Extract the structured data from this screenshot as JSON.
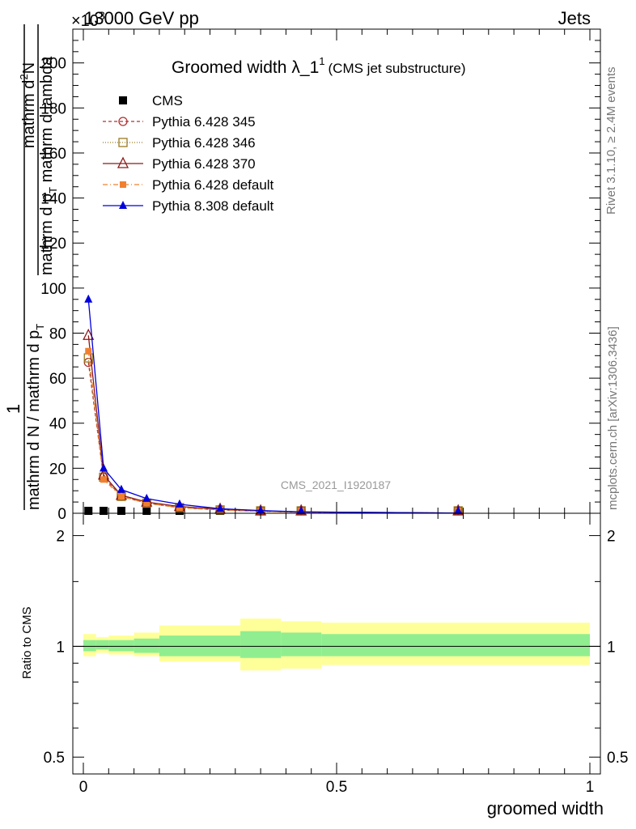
{
  "header": {
    "left": "13000 GeV pp",
    "right": "Jets",
    "exponent": "×10",
    "exponent_power": "3"
  },
  "title": {
    "main": "Groomed width",
    "lambda": "λ_1",
    "lambda_sup": "1",
    "sub": "(CMS jet substructure)"
  },
  "ylabel": {
    "numerator_1": "1",
    "frac_top": "mathrm d",
    "frac_top_sup": "2",
    "frac_top_rest": "N",
    "frac_bottom": "mathrm d p",
    "frac_bottom_sub": "T",
    "frac_bottom_rest": " mathrm d lambda",
    "denominator_1": "mathrm d N / mathrm d p",
    "denominator_1_sub": "T"
  },
  "watermark": "CMS_2021_I1920187",
  "side_right_top": "Rivet 3.1.10, ≥ 2.4M events",
  "side_right_bottom": "mcplots.cern.ch [arXiv:1306.3436]",
  "ratio_ylabel": "Ratio to CMS",
  "xlabel": "groomed width",
  "colors": {
    "cms": "#000000",
    "p345": "#b03030",
    "p346": "#9a7a20",
    "p370": "#8b1a1a",
    "pdef": "#f08030",
    "p8": "#0000dd",
    "band_inner": "#90ee90",
    "band_outer": "#ffff99"
  },
  "chart_data": [
    {
      "type": "line",
      "title": "Groomed width λ_1^1 (CMS jet substructure)",
      "ylabel": "×10^3",
      "xlim": [
        0,
        1
      ],
      "ylim": [
        0,
        215
      ],
      "yticks": [
        0,
        20,
        40,
        60,
        80,
        100,
        120,
        140,
        160,
        180,
        200
      ],
      "legend_position": "top-left",
      "x": [
        0.01,
        0.04,
        0.075,
        0.125,
        0.19,
        0.27,
        0.35,
        0.43,
        0.74
      ],
      "series": [
        {
          "name": "CMS",
          "marker": "square",
          "values": [
            0.9,
            0.8,
            0.6,
            0.5,
            0.3,
            0.2,
            0.1,
            0.1,
            0.05
          ]
        },
        {
          "name": "Pythia 6.428 345",
          "marker": "open-circle",
          "dash": "4,3",
          "values": [
            67,
            16,
            7.5,
            4.5,
            2.5,
            1.5,
            0.9,
            0.5,
            0.1
          ]
        },
        {
          "name": "Pythia 6.428 346",
          "marker": "open-square",
          "dash": "1,2",
          "values": [
            69,
            16,
            7.5,
            4.5,
            2.5,
            1.5,
            0.9,
            0.5,
            0.1
          ]
        },
        {
          "name": "Pythia 6.428 370",
          "marker": "open-triangle",
          "dash": "",
          "values": [
            79,
            17,
            8,
            5,
            3,
            1.8,
            1,
            0.6,
            0.1
          ]
        },
        {
          "name": "Pythia 6.428 default",
          "marker": "filled-square",
          "dash": "6,3,1,3",
          "values": [
            72,
            15,
            7.5,
            4.5,
            2.5,
            1.5,
            0.9,
            0.5,
            0.1
          ]
        },
        {
          "name": "Pythia 8.308 default",
          "marker": "filled-triangle",
          "dash": "",
          "values": [
            95,
            20,
            10.5,
            6.5,
            4,
            2,
            1.2,
            0.6,
            0.1
          ]
        }
      ]
    },
    {
      "type": "area",
      "ylabel": "Ratio to CMS",
      "xlabel": "groomed width",
      "xlim": [
        0,
        1
      ],
      "xticks": [
        "0",
        "0.5",
        "1"
      ],
      "ylim": [
        0.45,
        2.3
      ],
      "scale": "log",
      "yticks": [
        "0.5",
        "1",
        "2"
      ],
      "bins": [
        0,
        0.025,
        0.05,
        0.1,
        0.15,
        0.31,
        0.39,
        0.47,
        1.0
      ],
      "inner_band": [
        [
          0.97,
          1.04
        ],
        [
          0.98,
          1.04
        ],
        [
          0.97,
          1.04
        ],
        [
          0.96,
          1.05
        ],
        [
          0.94,
          1.07
        ],
        [
          0.93,
          1.1
        ],
        [
          0.94,
          1.09
        ],
        [
          0.94,
          1.08
        ]
      ],
      "outer_band": [
        [
          0.94,
          1.08
        ],
        [
          0.96,
          1.06
        ],
        [
          0.95,
          1.07
        ],
        [
          0.94,
          1.09
        ],
        [
          0.91,
          1.14
        ],
        [
          0.86,
          1.19
        ],
        [
          0.87,
          1.17
        ],
        [
          0.89,
          1.16
        ]
      ],
      "reference": 1
    }
  ]
}
